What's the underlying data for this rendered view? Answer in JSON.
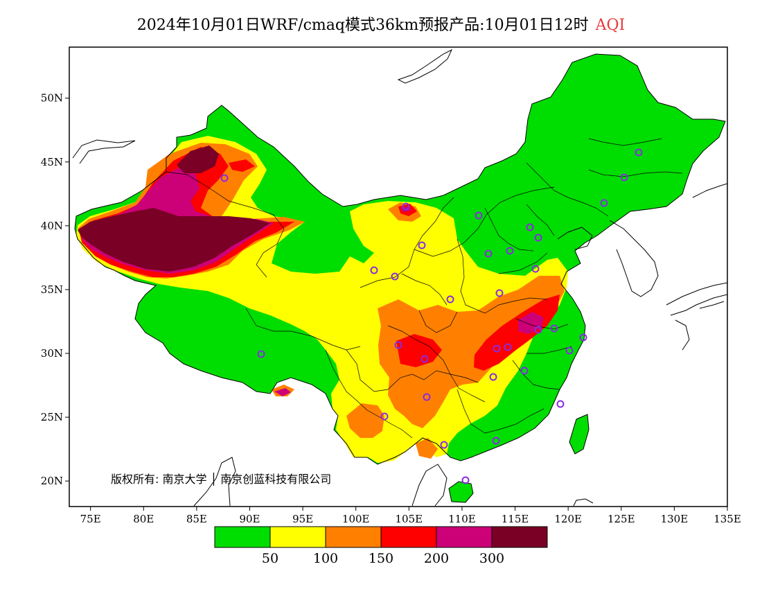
{
  "title": {
    "text": "2024年10月01日WRF/cmaq模式36km预报产品:10月01日12时",
    "variable": "AQI",
    "variable_color": "#e8393a"
  },
  "map": {
    "lon_range": [
      73,
      135
    ],
    "lat_range": [
      18,
      54
    ],
    "lon_ticks": [
      "75E",
      "80E",
      "85E",
      "90E",
      "95E",
      "100E",
      "105E",
      "110E",
      "115E",
      "120E",
      "125E",
      "130E",
      "135E"
    ],
    "lat_ticks": [
      "50N",
      "45N",
      "40N",
      "35N",
      "30N",
      "25N",
      "20N"
    ],
    "copyright": "版权所有: 南京大学 │ 南京创蓝科技有限公司"
  },
  "legend": {
    "colors": [
      "#00dd00",
      "#ffff00",
      "#ff8000",
      "#ff0000",
      "#cc0077",
      "#7a0025"
    ],
    "labels": [
      "50",
      "100",
      "150",
      "200",
      "300"
    ]
  },
  "stations": {
    "marker_color": "#8a2be2",
    "count": 33
  }
}
